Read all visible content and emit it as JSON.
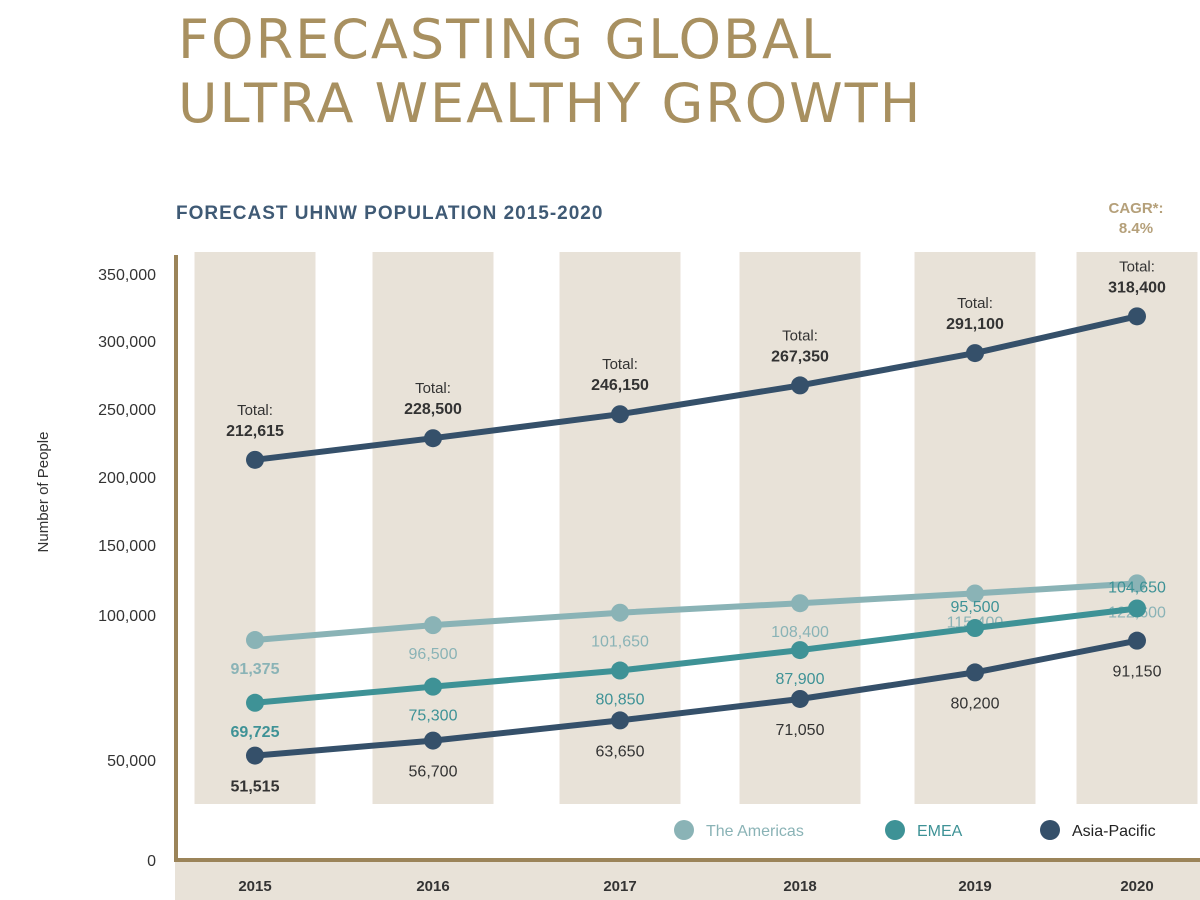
{
  "title": {
    "line1": "FORECASTING GLOBAL",
    "line2": "ULTRA WEALTHY GROWTH"
  },
  "colors": {
    "title": "#a89060",
    "subtitle": "#3f5a75",
    "band": "#e8e2d8",
    "axis": "#9b8459",
    "americas": "#8ab3b6",
    "emea": "#3e9296",
    "apac": "#35506a",
    "total": "#35506a"
  },
  "chart_data": {
    "type": "line",
    "title": "FORECAST UHNW POPULATION 2015-2020",
    "annotation": [
      "CAGR*:",
      "8.4%"
    ],
    "xlabel": "",
    "ylabel": "Number of People",
    "categories": [
      "2015",
      "2016",
      "2017",
      "2018",
      "2019",
      "2020"
    ],
    "yticks": [
      0,
      50000,
      100000,
      150000,
      200000,
      250000,
      300000,
      350000
    ],
    "ytick_labels": [
      "0",
      "50,000",
      "100,000",
      "150,000",
      "200,000",
      "250,000",
      "300,000",
      "350,000"
    ],
    "ylim": [
      0,
      350000
    ],
    "grid": false,
    "legend_position": "bottom-right",
    "total_label": "Total:",
    "totals": [
      212615,
      228500,
      246150,
      267350,
      291100,
      318400
    ],
    "total_labels": [
      "212,615",
      "228,500",
      "246,150",
      "267,350",
      "291,100",
      "318,400"
    ],
    "series": [
      {
        "name": "The Americas",
        "key": "americas",
        "values": [
          91375,
          96500,
          101650,
          108400,
          115400,
          122600
        ],
        "value_labels": [
          "91,375",
          "96,500",
          "101,650",
          "108,400",
          "115,400",
          "122,600"
        ]
      },
      {
        "name": "EMEA",
        "key": "emea",
        "values": [
          69725,
          75300,
          80850,
          87900,
          95500,
          104650
        ],
        "value_labels": [
          "69,725",
          "75,300",
          "80,850",
          "87,900",
          "95,500",
          "104,650"
        ]
      },
      {
        "name": "Asia-Pacific",
        "key": "apac",
        "values": [
          51515,
          56700,
          63650,
          71050,
          80200,
          91150
        ],
        "value_labels": [
          "51,515",
          "56,700",
          "63,650",
          "71,050",
          "80,200",
          "91,150"
        ]
      }
    ]
  }
}
